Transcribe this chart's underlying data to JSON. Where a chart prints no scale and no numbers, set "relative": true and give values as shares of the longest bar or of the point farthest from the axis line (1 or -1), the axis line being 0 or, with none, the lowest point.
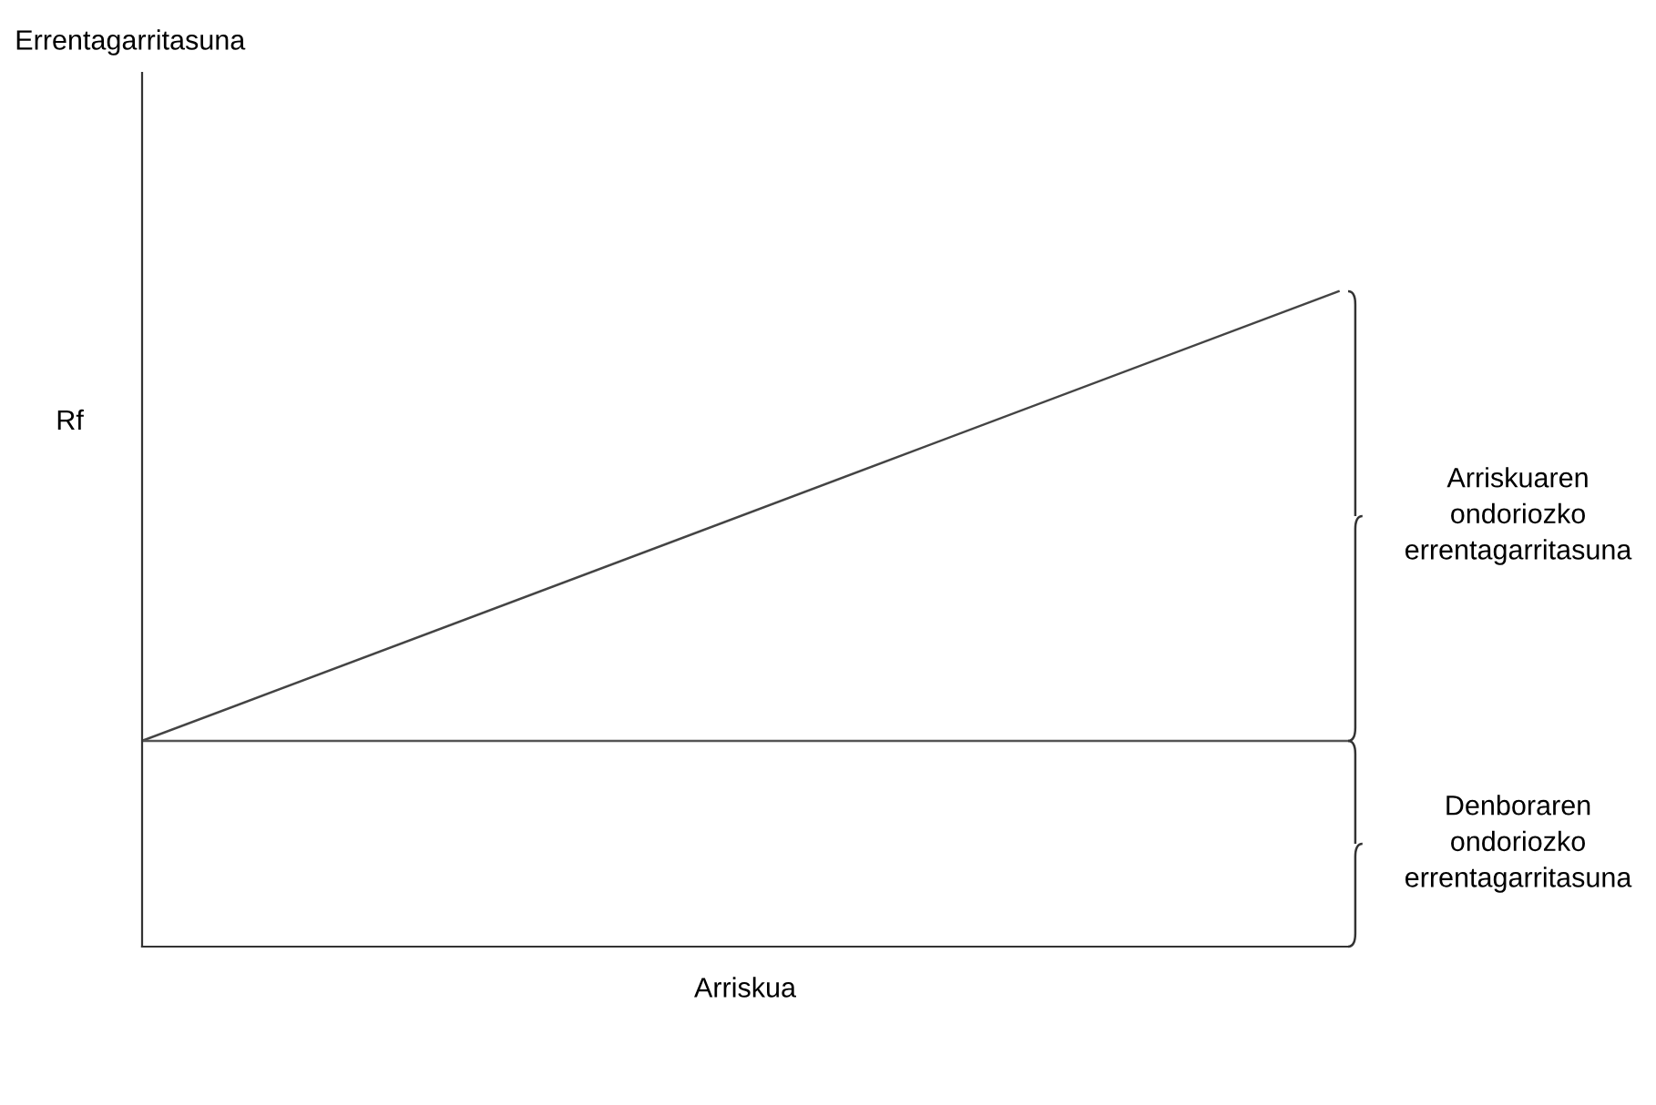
{
  "chart_data": {
    "type": "line",
    "relative": true,
    "xlabel": "Arriskua",
    "categories": [
      null,
      null
    ],
    "series": [
      {
        "color": "#444444",
        "values": [
          0.314,
          1
        ]
      }
    ],
    "ref_lines": [
      {
        "axis": "y",
        "value": 0.314,
        "color": "#555555"
      }
    ],
    "annotations": [
      "Errentagarritasuna",
      "Rf",
      "Arriskuaren\nondoriozko\nerrentagarritasuna",
      "Denboraren\nondoriozko\nerrentagarritasuna"
    ],
    "grid": false,
    "legend": false,
    "tick_labels": false,
    "marker": "none",
    "line_style": "solid"
  }
}
